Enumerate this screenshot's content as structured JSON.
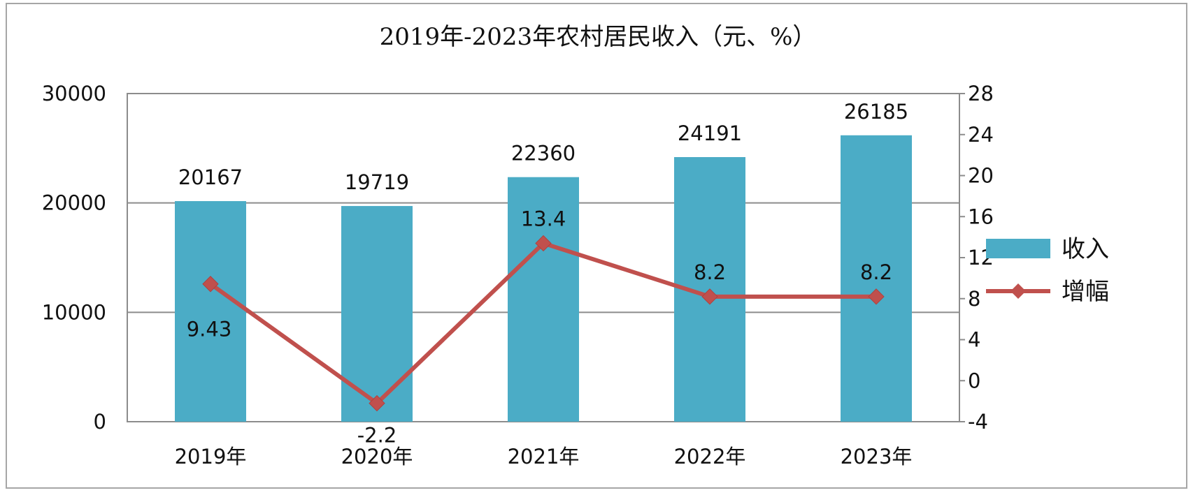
{
  "chart_data": {
    "type": "bar",
    "title": "2019年-2023年农村居民收入（元、%）",
    "categories": [
      "2019年",
      "2020年",
      "2021年",
      "2022年",
      "2023年"
    ],
    "series": [
      {
        "name": "收入",
        "type": "bar",
        "axis": "left",
        "color": "#4bacc6",
        "values": [
          20167,
          19719,
          22360,
          24191,
          26185
        ],
        "labels": [
          "20167",
          "19719",
          "22360",
          "24191",
          "26185"
        ]
      },
      {
        "name": "增幅",
        "type": "line",
        "axis": "right",
        "color": "#c0504d",
        "marker": "diamond",
        "values": [
          9.43,
          -2.2,
          13.4,
          8.2,
          8.2
        ],
        "labels": [
          "9.43",
          "-2.2",
          "13.4",
          "8.2",
          "8.2"
        ]
      }
    ],
    "y_left": {
      "min": 0,
      "max": 30000,
      "ticks": [
        "0",
        "10000",
        "20000",
        "30000"
      ]
    },
    "y_right": {
      "min": -4,
      "max": 28,
      "ticks": [
        "-4",
        "0",
        "4",
        "8",
        "12",
        "16",
        "20",
        "24",
        "28"
      ]
    },
    "grid": true,
    "legend_position": "right",
    "xlabel": "",
    "ylabel": ""
  }
}
